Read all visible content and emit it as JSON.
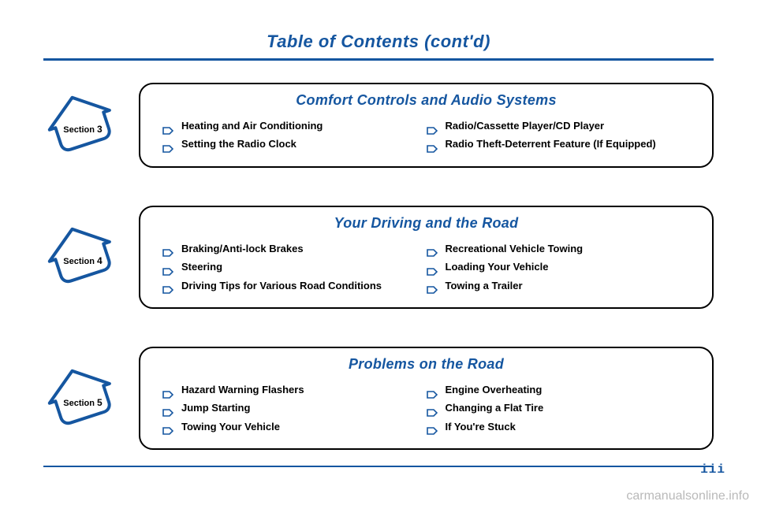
{
  "page_title": "Table of Contents (cont'd)",
  "colors": {
    "primary": "#1556a0",
    "text": "#000000",
    "background": "#ffffff",
    "watermark": "#b9b9b9"
  },
  "sections": [
    {
      "label": "Section",
      "number": "3",
      "title": "Comfort Controls and Audio Systems",
      "left": [
        "Heating and Air Conditioning",
        "Setting the Radio Clock"
      ],
      "right": [
        "Radio/Cassette Player/CD Player",
        "Radio Theft-Deterrent Feature (If Equipped)"
      ]
    },
    {
      "label": "Section",
      "number": "4",
      "title": "Your Driving and the Road",
      "left": [
        "Braking/Anti-lock Brakes",
        "Steering",
        "Driving Tips for Various Road Conditions"
      ],
      "right": [
        "Recreational Vehicle Towing",
        "Loading Your Vehicle",
        "Towing a Trailer"
      ]
    },
    {
      "label": "Section",
      "number": "5",
      "title": "Problems on the Road",
      "left": [
        "Hazard Warning Flashers",
        "Jump Starting",
        "Towing Your Vehicle"
      ],
      "right": [
        "Engine Overheating",
        "Changing a Flat Tire",
        "If You're Stuck"
      ]
    }
  ],
  "page_number": "iii",
  "watermark": "carmanualsonline.info"
}
